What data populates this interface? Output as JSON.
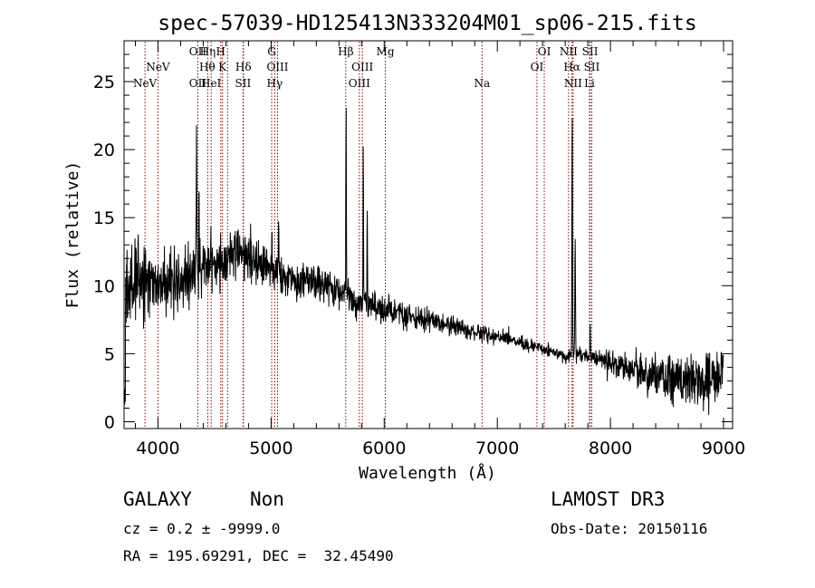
{
  "chart_data": {
    "type": "line",
    "title": "spec-57039-HD125413N333204M01_sp06-215.fits",
    "xlabel": "Wavelength (Å)",
    "ylabel": "Flux (relative)",
    "xlim": [
      3700,
      9080
    ],
    "ylim": [
      -0.5,
      28
    ],
    "x_ticks": [
      4000,
      5000,
      6000,
      7000,
      8000,
      9000
    ],
    "x_tick_labels": [
      "4000",
      "5000",
      "6000",
      "7000",
      "8000",
      "9000"
    ],
    "y_ticks": [
      0,
      5,
      10,
      15,
      20,
      25
    ],
    "y_tick_labels": [
      "0",
      "5",
      "10",
      "15",
      "20",
      "25"
    ],
    "line_color": "#000000",
    "marker_color": "#8b0000",
    "continuum_anchors": [
      [
        3700,
        9
      ],
      [
        3800,
        10.5
      ],
      [
        3900,
        10
      ],
      [
        4000,
        10
      ],
      [
        4200,
        10.5
      ],
      [
        4400,
        11.2
      ],
      [
        4600,
        11.8
      ],
      [
        4700,
        12.5
      ],
      [
        4900,
        11.5
      ],
      [
        5000,
        11
      ],
      [
        5200,
        10.5
      ],
      [
        5500,
        10
      ],
      [
        5700,
        9
      ],
      [
        6000,
        8.2
      ],
      [
        6500,
        7.2
      ],
      [
        7000,
        6.2
      ],
      [
        7400,
        5.4
      ],
      [
        7600,
        4.8
      ],
      [
        7700,
        4.9
      ],
      [
        7900,
        4.7
      ],
      [
        8200,
        3.8
      ],
      [
        8500,
        3.2
      ],
      [
        8800,
        3.0
      ],
      [
        9080,
        3.5
      ]
    ],
    "noise_anchors": [
      [
        3700,
        2.2
      ],
      [
        4000,
        1.9
      ],
      [
        4500,
        1.3
      ],
      [
        5000,
        1.0
      ],
      [
        5600,
        0.9
      ],
      [
        6000,
        0.7
      ],
      [
        7000,
        0.35
      ],
      [
        7600,
        0.3
      ],
      [
        8000,
        0.5
      ],
      [
        8400,
        1.1
      ],
      [
        8800,
        1.4
      ],
      [
        9080,
        1.6
      ]
    ],
    "emission_peaks": [
      {
        "x": 4340,
        "peak": 22.4,
        "width": 4
      },
      {
        "x": 4363,
        "peak": 16.0,
        "width": 3
      },
      {
        "x": 5007,
        "peak": 14.0,
        "width": 3
      },
      {
        "x": 5067,
        "peak": 15.5,
        "width": 3
      },
      {
        "x": 5663,
        "peak": 23.8,
        "width": 3
      },
      {
        "x": 5815,
        "peak": 20.5,
        "width": 3
      },
      {
        "x": 5850,
        "peak": 15.5,
        "width": 3
      },
      {
        "x": 7662,
        "peak": 23.0,
        "width": 4
      },
      {
        "x": 7688,
        "peak": 13.5,
        "width": 4
      },
      {
        "x": 7820,
        "peak": 7.5,
        "width": 4
      },
      {
        "x": 8990,
        "peak": 5.2,
        "width": 6
      }
    ],
    "spectral_lines": [
      {
        "x": 3885,
        "row": 3,
        "label": "NeV"
      },
      {
        "x": 4000,
        "row": 2,
        "label": "NeV"
      },
      {
        "x": 4352,
        "row": 1,
        "label": "OII"
      },
      {
        "x": 4352,
        "row": 3,
        "label": "OII"
      },
      {
        "x": 4440,
        "row": 1,
        "label": "Hη"
      },
      {
        "x": 4435,
        "row": 2,
        "label": "Hθ"
      },
      {
        "x": 4470,
        "row": 3,
        "label": "HeI"
      },
      {
        "x": 4555,
        "row": 1,
        "label": "H"
      },
      {
        "x": 4570,
        "row": 2,
        "label": "K"
      },
      {
        "x": 4615,
        "row": 3,
        "label": ""
      },
      {
        "x": 4755,
        "row": 2,
        "label": "Hδ"
      },
      {
        "x": 4752,
        "row": 3,
        "label": "SII"
      },
      {
        "x": 5005,
        "row": 1,
        "label": "G"
      },
      {
        "x": 5057,
        "row": 2,
        "label": "OIII"
      },
      {
        "x": 5032,
        "row": 3,
        "label": "Hγ"
      },
      {
        "x": 5660,
        "row": 1,
        "label": "Hβ"
      },
      {
        "x": 5807,
        "row": 2,
        "label": "OIII"
      },
      {
        "x": 5780,
        "row": 3,
        "label": "OIII"
      },
      {
        "x": 6010,
        "row": 1,
        "label": "Mg"
      },
      {
        "x": 6865,
        "row": 3,
        "label": "Na"
      },
      {
        "x": 7350,
        "row": 2,
        "label": "OI"
      },
      {
        "x": 7415,
        "row": 1,
        "label": "OI"
      },
      {
        "x": 7630,
        "row": 1,
        "label": "NII"
      },
      {
        "x": 7660,
        "row": 2,
        "label": "Hα"
      },
      {
        "x": 7670,
        "row": 3,
        "label": "NII"
      },
      {
        "x": 7820,
        "row": 1,
        "label": "SII"
      },
      {
        "x": 7835,
        "row": 2,
        "label": "SII"
      },
      {
        "x": 7815,
        "row": 3,
        "label": "Li"
      }
    ]
  },
  "info": {
    "class": "GALAXY",
    "subclass": "Non",
    "survey": "LAMOST DR3",
    "cz": "cz = 0.2 ± -9999.0",
    "obs_date": "Obs-Date: 20150116",
    "coords": "RA = 195.69291, DEC =  32.45490"
  }
}
